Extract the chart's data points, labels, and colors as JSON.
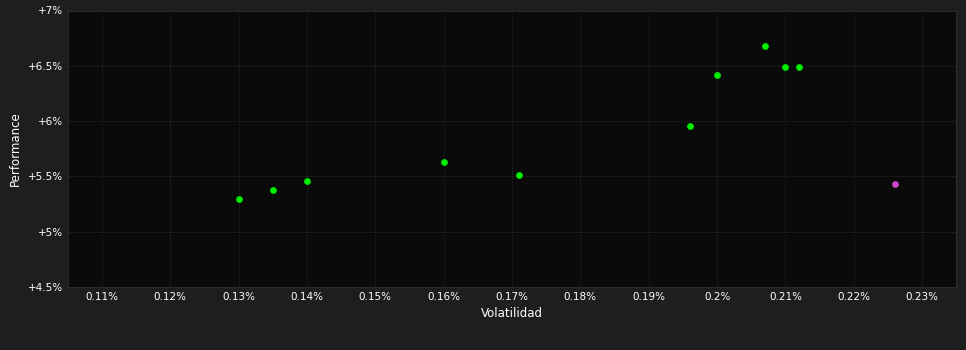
{
  "background_color": "#1e1e1e",
  "plot_bg_color": "#0a0a0a",
  "grid_color": "#2e2e2e",
  "text_color": "#ffffff",
  "xlabel": "Volatilidad",
  "ylabel": "Performance",
  "xlim": [
    0.00105,
    0.00235
  ],
  "ylim": [
    0.045,
    0.07
  ],
  "xticks": [
    0.0011,
    0.0012,
    0.0013,
    0.0014,
    0.0015,
    0.0016,
    0.0017,
    0.0018,
    0.0019,
    0.002,
    0.0021,
    0.0022,
    0.0023
  ],
  "yticks": [
    0.045,
    0.05,
    0.055,
    0.06,
    0.065,
    0.07
  ],
  "ytick_labels": [
    "+4.5%",
    "+5%",
    "+5.5%",
    "+6%",
    "+6.5%",
    "+7%"
  ],
  "xtick_labels": [
    "0.11%",
    "0.12%",
    "0.13%",
    "0.14%",
    "0.15%",
    "0.16%",
    "0.17%",
    "0.18%",
    "0.19%",
    "0.2%",
    "0.21%",
    "0.22%",
    "0.23%"
  ],
  "green_points": [
    [
      0.0013,
      0.053
    ],
    [
      0.00135,
      0.0538
    ],
    [
      0.0014,
      0.0546
    ],
    [
      0.0016,
      0.0563
    ],
    [
      0.00171,
      0.0551
    ],
    [
      0.00196,
      0.0596
    ],
    [
      0.002,
      0.0642
    ],
    [
      0.00207,
      0.0668
    ],
    [
      0.0021,
      0.0649
    ],
    [
      0.00212,
      0.0649
    ]
  ],
  "magenta_points": [
    [
      0.00226,
      0.0543
    ]
  ],
  "point_size": 15
}
